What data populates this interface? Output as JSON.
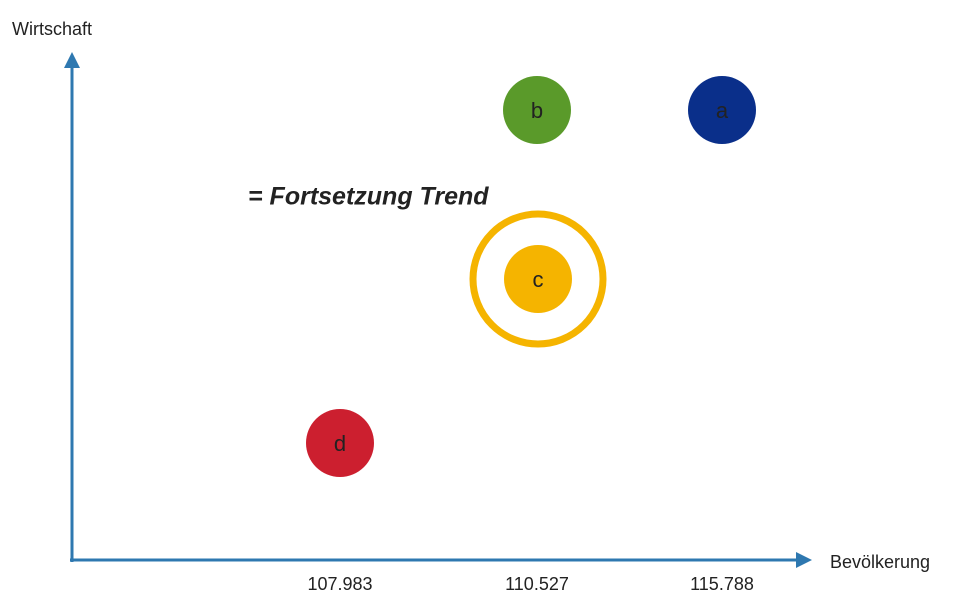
{
  "y_axis": {
    "label": "Wirtschaft"
  },
  "x_axis": {
    "label": "Bevölkerung",
    "labels": [
      "107.983",
      "110.527",
      "115.788"
    ]
  },
  "annotation": "= Fortsetzung Trend",
  "nodes": [
    {
      "label": "a"
    },
    {
      "label": "b"
    },
    {
      "label": "c"
    },
    {
      "label": "d"
    }
  ]
}
